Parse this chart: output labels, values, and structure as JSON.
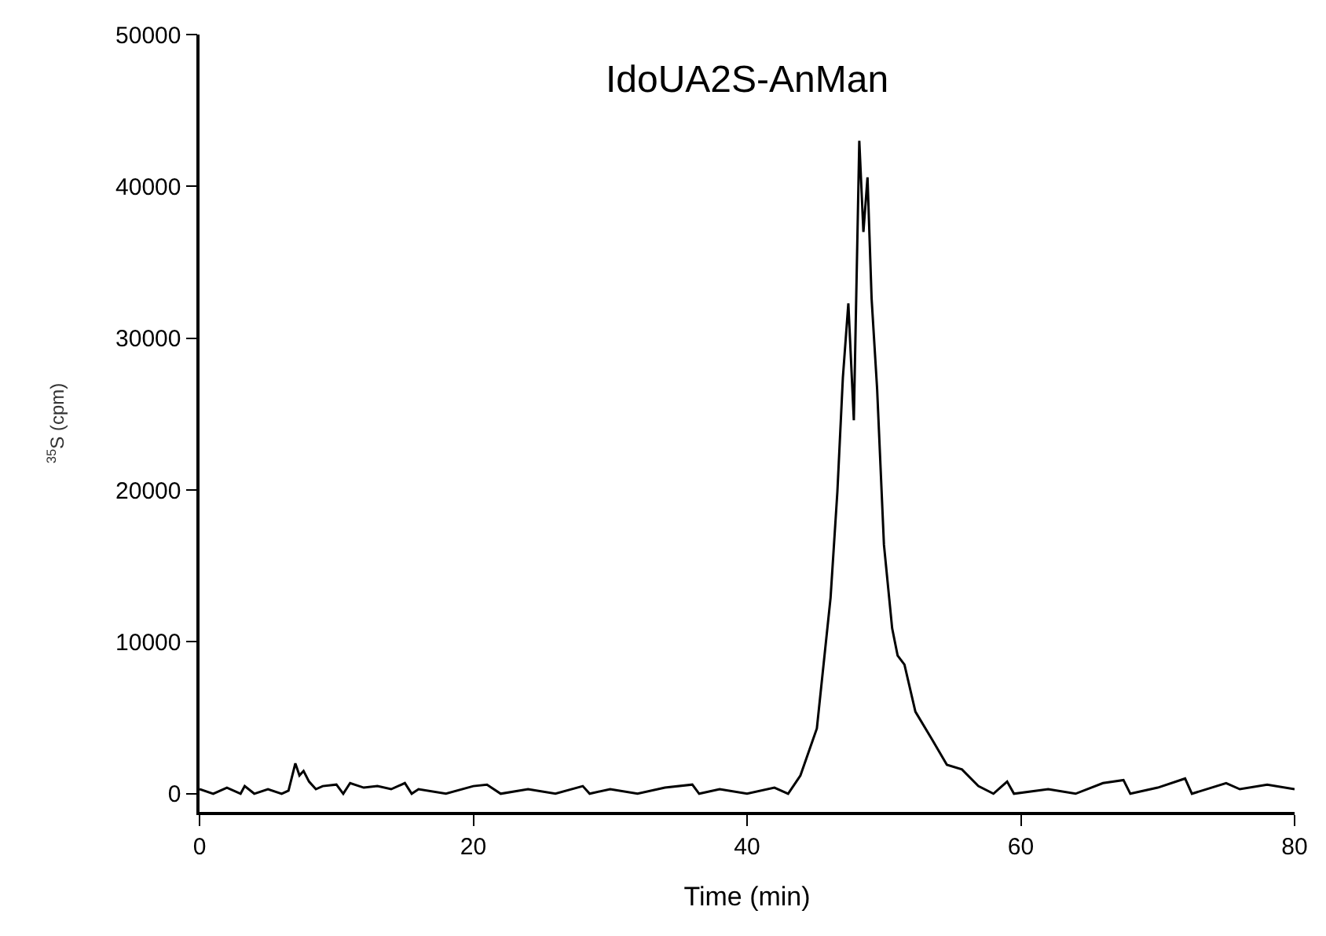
{
  "chart_data": {
    "type": "line",
    "title": "IdoUA2S-AnMan",
    "xlabel": "Time (min)",
    "ylabel": "$^{35}$S (cpm)",
    "x": [
      0,
      1,
      2,
      3,
      3.3,
      4,
      5,
      6,
      6.5,
      7,
      7.3,
      7.6,
      8,
      8.5,
      9,
      10,
      10.5,
      11,
      12,
      13,
      14,
      15,
      15.5,
      16,
      18,
      20,
      21,
      22,
      24,
      26,
      28,
      28.5,
      30,
      32,
      34,
      36,
      36.5,
      38,
      40,
      42,
      43,
      43.9,
      45.1,
      46.1,
      46.6,
      47.0,
      47.4,
      47.8,
      48.2,
      48.5,
      48.8,
      49.1,
      49.5,
      50.0,
      50.6,
      51.0,
      51.5,
      52.3,
      53.5,
      54.6,
      55.7,
      56.9,
      58,
      59,
      59.5,
      62,
      64,
      66,
      67.5,
      68,
      70,
      72,
      72.5,
      75,
      76,
      78,
      80
    ],
    "series": [
      {
        "color": "#000000",
        "values": [
          300,
          0,
          400,
          0,
          500,
          0,
          300,
          0,
          200,
          2000,
          1200,
          1500,
          800,
          300,
          500,
          600,
          0,
          700,
          400,
          500,
          300,
          700,
          0,
          300,
          0,
          500,
          600,
          0,
          300,
          0,
          500,
          0,
          300,
          0,
          400,
          600,
          0,
          300,
          0,
          400,
          0,
          1200,
          4300,
          12900,
          19900,
          27400,
          32300,
          24600,
          43000,
          37000,
          40600,
          32600,
          26700,
          16400,
          10900,
          9100,
          8500,
          5400,
          3600,
          1900,
          1600,
          500,
          0,
          800,
          0,
          300,
          0,
          700,
          900,
          0,
          400,
          1000,
          0,
          700,
          300,
          600,
          300
        ]
      }
    ],
    "xlim": [
      0,
      80
    ],
    "xticks": [
      0,
      20,
      40,
      60,
      80
    ],
    "ylim": [
      -1200,
      50000
    ],
    "yticks": [
      0,
      10000,
      20000,
      30000,
      40000,
      50000
    ],
    "legend": false,
    "marker": "none",
    "line_style": "solid"
  }
}
